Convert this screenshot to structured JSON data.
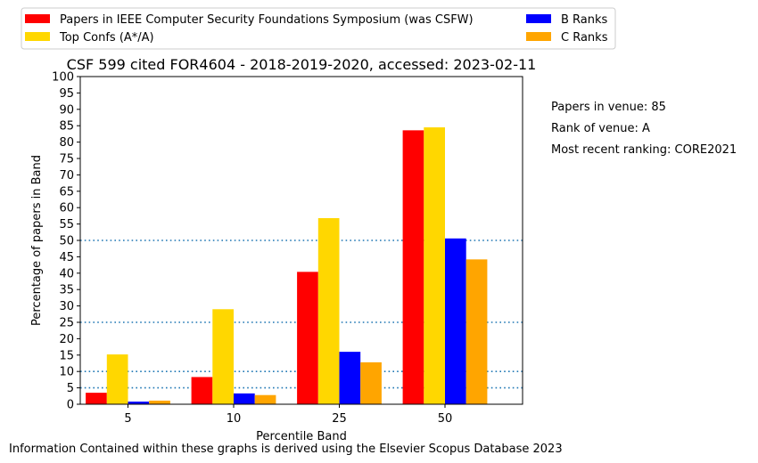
{
  "chart_data": {
    "type": "bar",
    "title": "CSF 599 cited FOR4604 - 2018-2019-2020, accessed: 2023-02-11",
    "xlabel": "Percentile Band",
    "ylabel": "Percentage of papers in Band",
    "categories": [
      "5",
      "10",
      "25",
      "50"
    ],
    "ylim": [
      0,
      100
    ],
    "yticks": [
      "0",
      "5",
      "10",
      "15",
      "20",
      "25",
      "30",
      "35",
      "40",
      "45",
      "50",
      "55",
      "60",
      "65",
      "70",
      "75",
      "80",
      "85",
      "90",
      "95",
      "100"
    ],
    "reference_lines": [
      5,
      10,
      25,
      50
    ],
    "grid": false,
    "legend_position": "top",
    "series": [
      {
        "name": "Papers in IEEE Computer Security Foundations Symposium (was CSFW)",
        "color": "#ff0000",
        "values": [
          3.5,
          8.3,
          40.4,
          83.6
        ]
      },
      {
        "name": "Top Confs (A*/A)",
        "color": "#ffd700",
        "values": [
          15.2,
          29.0,
          56.8,
          84.5
        ]
      },
      {
        "name": "B Ranks",
        "color": "#0000ff",
        "values": [
          0.8,
          3.3,
          16.0,
          50.6
        ]
      },
      {
        "name": "C Ranks",
        "color": "#ffa500",
        "values": [
          1.1,
          2.8,
          12.8,
          44.2
        ]
      }
    ],
    "annotations": [
      "Papers in venue: 85",
      "Rank of venue: A",
      "Most recent ranking: CORE2021"
    ],
    "footer": "Information Contained within these graphs is derived using the Elsevier Scopus Database 2023"
  }
}
